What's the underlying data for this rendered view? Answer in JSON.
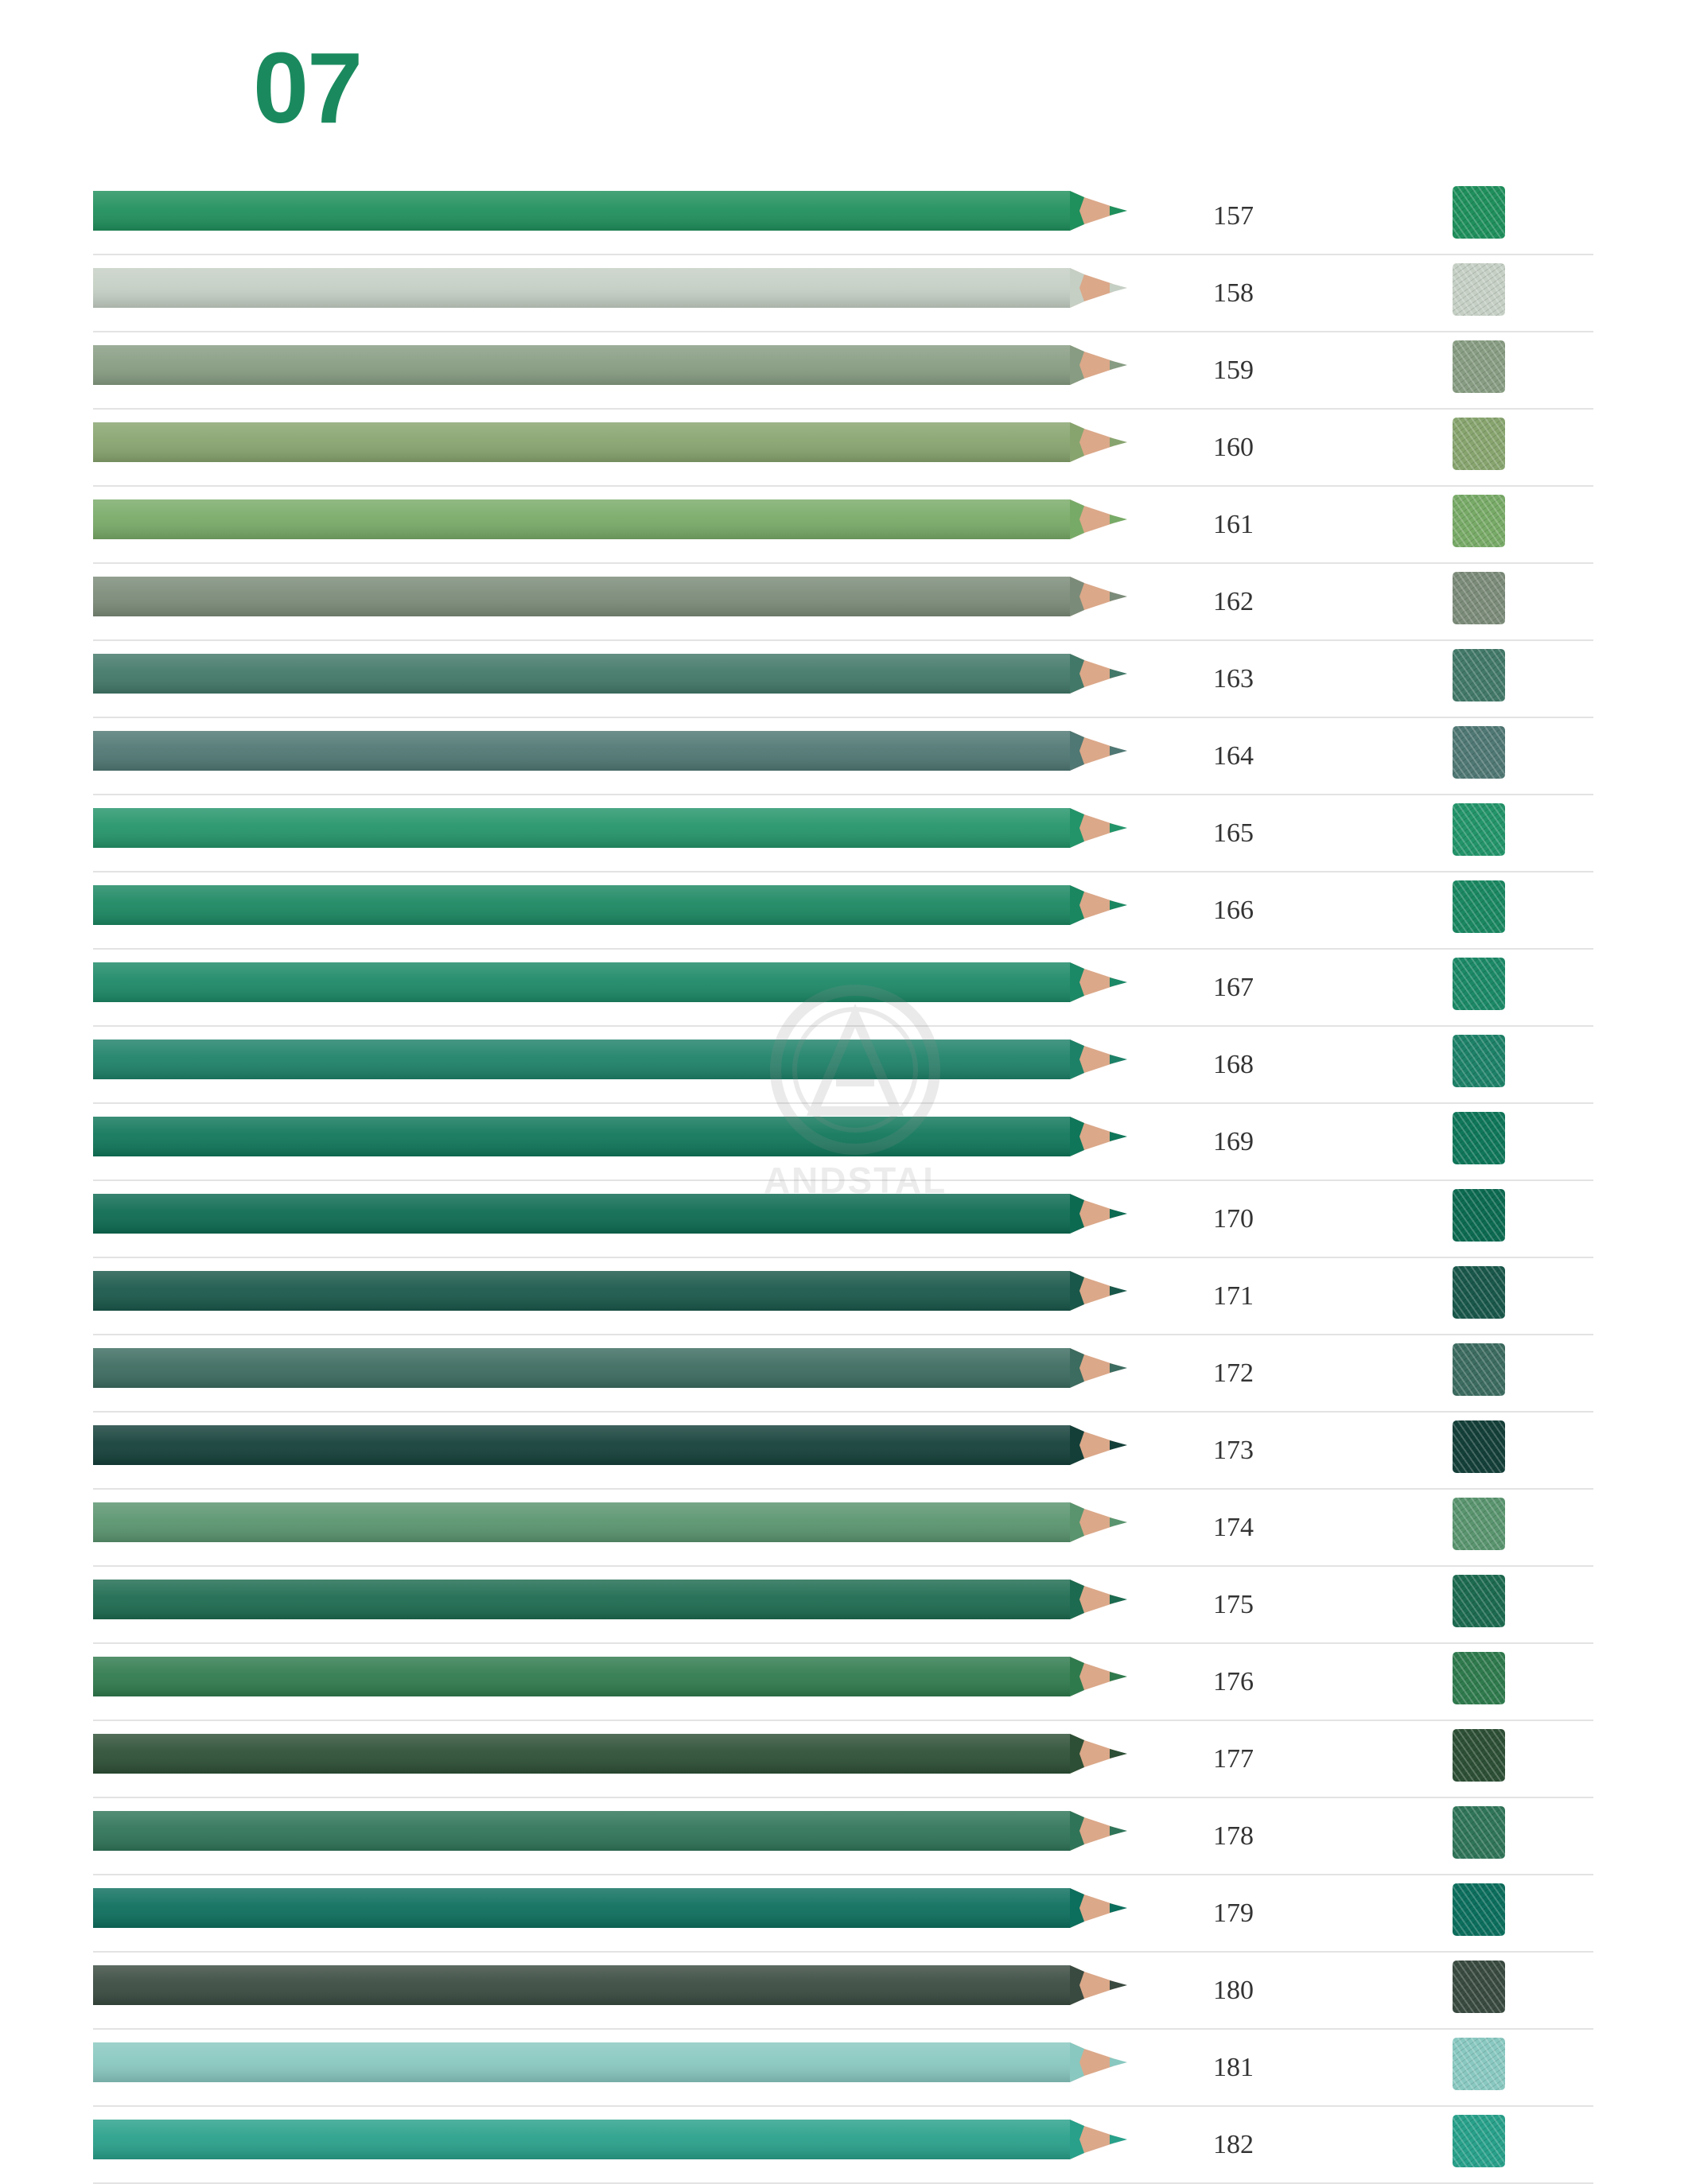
{
  "page": {
    "title": "07",
    "title_color": "#1a8a5e"
  },
  "watermark": {
    "text": "ANDSTAL"
  },
  "pencils": [
    {
      "code": "157",
      "color": "#1f8f5c"
    },
    {
      "code": "158",
      "color": "#c5cfc4"
    },
    {
      "code": "159",
      "color": "#879c82"
    },
    {
      "code": "160",
      "color": "#87a46e"
    },
    {
      "code": "161",
      "color": "#78aa67"
    },
    {
      "code": "162",
      "color": "#7b8b79"
    },
    {
      "code": "163",
      "color": "#427868"
    },
    {
      "code": "164",
      "color": "#4f7773"
    },
    {
      "code": "165",
      "color": "#23946a"
    },
    {
      "code": "166",
      "color": "#1a8761"
    },
    {
      "code": "167",
      "color": "#1b8866"
    },
    {
      "code": "168",
      "color": "#1d8168"
    },
    {
      "code": "169",
      "color": "#0f7659"
    },
    {
      "code": "170",
      "color": "#0c6a51"
    },
    {
      "code": "171",
      "color": "#19574a"
    },
    {
      "code": "172",
      "color": "#3c6b5f"
    },
    {
      "code": "173",
      "color": "#143f39"
    },
    {
      "code": "174",
      "color": "#59946e"
    },
    {
      "code": "175",
      "color": "#1c6a4f"
    },
    {
      "code": "176",
      "color": "#2f7a4d"
    },
    {
      "code": "177",
      "color": "#2d4f35"
    },
    {
      "code": "178",
      "color": "#2f7458"
    },
    {
      "code": "179",
      "color": "#0c6e5d"
    },
    {
      "code": "180",
      "color": "#394a40"
    },
    {
      "code": "181",
      "color": "#88c8c0"
    },
    {
      "code": "182",
      "color": "#28a08a"
    }
  ]
}
